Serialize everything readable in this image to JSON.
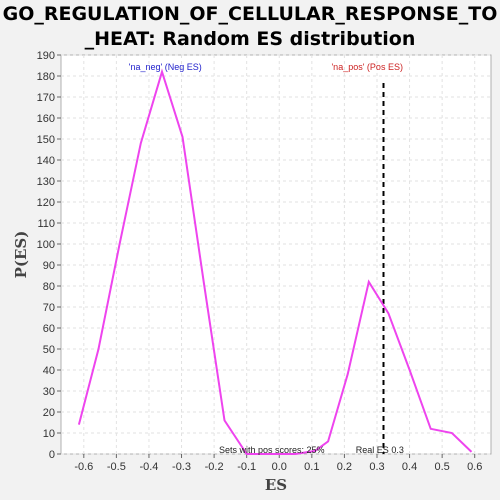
{
  "chart_data": {
    "type": "line",
    "title": [
      "GO_REGULATION_OF_CELLULAR_RESPONSE_TO",
      "_HEAT: Random ES distribution"
    ],
    "xlabel": "ES",
    "ylabel": "P(ES)",
    "xlim": [
      -0.67,
      0.65
    ],
    "ylim": [
      0,
      190
    ],
    "x_ticks": [
      -0.6,
      -0.5,
      -0.4,
      -0.3,
      -0.2,
      -0.1,
      0.0,
      0.1,
      0.2,
      0.3,
      0.4,
      0.5,
      0.6
    ],
    "x_tick_labels": [
      "-0.6",
      "-0.5",
      "-0.4",
      "-0.3",
      "-0.2",
      "-0.1",
      "0.0",
      "0.1",
      "0.2",
      "0.3",
      "0.4",
      "0.5",
      "0.6"
    ],
    "y_ticks": [
      0,
      10,
      20,
      30,
      40,
      50,
      60,
      70,
      80,
      90,
      100,
      110,
      120,
      130,
      140,
      150,
      160,
      170,
      180,
      190
    ],
    "y_tick_labels": [
      "0",
      "10",
      "20",
      "30",
      "40",
      "50",
      "60",
      "70",
      "80",
      "90",
      "100",
      "110",
      "120",
      "130",
      "140",
      "150",
      "160",
      "170",
      "180",
      "190"
    ],
    "grid": true,
    "series": [
      {
        "color": "#ee44ee",
        "x": [
          -0.615,
          -0.555,
          -0.49,
          -0.425,
          -0.36,
          -0.297,
          -0.232,
          -0.168,
          -0.1,
          0.05,
          0.11,
          0.15,
          0.21,
          0.275,
          0.335,
          0.4,
          0.465,
          0.53,
          0.59
        ],
        "y": [
          14,
          50,
          100,
          148,
          182,
          151,
          82,
          16,
          0,
          0,
          1.5,
          6,
          38,
          82,
          67,
          40,
          12,
          10,
          1
        ]
      }
    ],
    "real_es": 0.32,
    "real_es_line_color": "#000000",
    "annotations": {
      "neg_label": "'na_neg' (Neg ES)",
      "neg_color": "#2222cc",
      "pos_label": "'na_pos' (Pos ES)",
      "pos_color": "#cc2222",
      "sets_label": "Sets with pos scores: 25%",
      "real_es_label": "Real ES 0.3"
    }
  }
}
